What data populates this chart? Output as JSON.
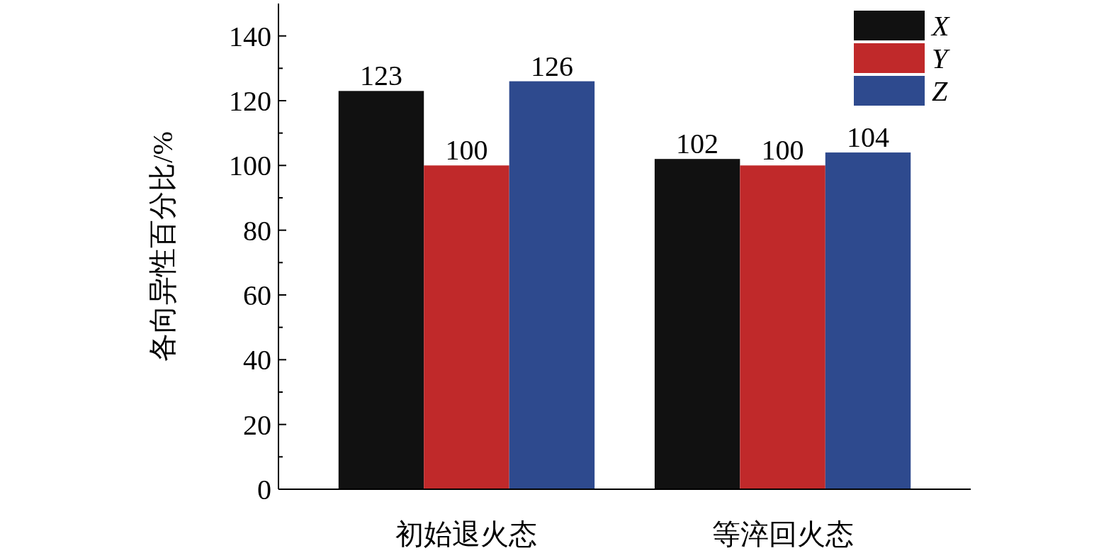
{
  "chart_data": {
    "type": "bar",
    "ylabel": "各向异性百分比/%",
    "categories": [
      "初始退火态",
      "等淬回火态"
    ],
    "series": [
      {
        "name": "X",
        "color": "#111111",
        "values": [
          123,
          102
        ]
      },
      {
        "name": "Y",
        "color": "#c0292a",
        "values": [
          100,
          100
        ]
      },
      {
        "name": "Z",
        "color": "#2e4a8e",
        "values": [
          126,
          104
        ]
      }
    ],
    "ylim": [
      0,
      150
    ],
    "yticks": [
      0,
      {
        "value": 10,
        "label": null
      },
      20,
      {
        "value": 30,
        "label": null
      },
      40,
      {
        "value": 50,
        "label": null
      },
      60,
      {
        "value": 70,
        "label": null
      },
      80,
      {
        "value": 90,
        "label": null
      },
      100,
      {
        "value": 110,
        "label": null
      },
      120,
      {
        "value": 130,
        "label": null
      },
      140
    ],
    "data_labels": true,
    "legend": "top right"
  }
}
